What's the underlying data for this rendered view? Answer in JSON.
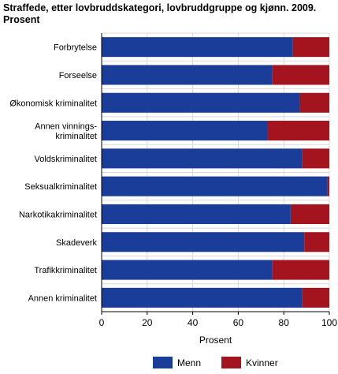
{
  "chart_data": {
    "type": "bar",
    "orientation": "horizontal",
    "stacked": true,
    "title": "Straffede, etter lovbruddskategori, lovbruddgruppe og kjønn. 2009. Prosent",
    "title_lines": [
      "Straffede, etter lovbruddskategori, lovbruddgruppe og kjønn. 2009.",
      "Prosent"
    ],
    "xlabel": "Prosent",
    "ylabel": "",
    "xlim": [
      0,
      100
    ],
    "xticks": [
      "0",
      "20",
      "40",
      "60",
      "80",
      "100"
    ],
    "grid": true,
    "legend_position": "bottom",
    "categories": [
      "Forbrytelse",
      "Forseelse",
      "Økonomisk kriminalitet",
      "Annen vinnings-\nkriminalitet",
      "Voldskriminalitet",
      "Seksualkriminalitet",
      "Narkotikakriminalitet",
      "Skadeverk",
      "Trafikkriminalitet",
      "Annen kriminalitet"
    ],
    "series": [
      {
        "name": "Menn",
        "color": "#1a3d99",
        "values": [
          84,
          75,
          87,
          73,
          88,
          99,
          83,
          89,
          75,
          88
        ]
      },
      {
        "name": "Kvinner",
        "color": "#a3141e",
        "values": [
          16,
          25,
          13,
          27,
          12,
          1,
          17,
          11,
          25,
          12
        ]
      }
    ]
  }
}
